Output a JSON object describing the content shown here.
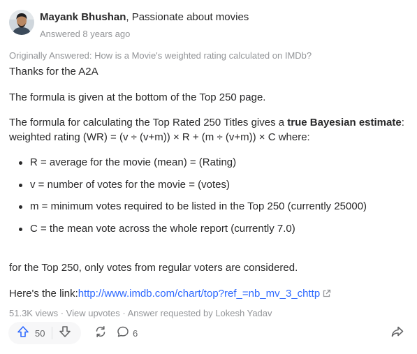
{
  "author": {
    "name": "Mayank Bhushan",
    "credential": ", Passionate about movies",
    "answered": "Answered 8 years ago"
  },
  "originally_answered": "Originally Answered: How is a Movie's weighted rating calculated on IMDb?",
  "body": {
    "p1": "Thanks for the A2A",
    "p2": "The formula is given at the bottom of the Top 250 page.",
    "p3_pre": "The formula for calculating the Top Rated 250 Titles gives a ",
    "p3_bold": "true Bayesian estimate",
    "p3_post": ":",
    "p4": "weighted rating (WR) = (v ÷ (v+m)) × R + (m ÷ (v+m)) × C where:",
    "bullets": [
      "R = average for the movie (mean) = (Rating)",
      "v = number of votes for the movie = (votes)",
      "m = minimum votes required to be listed in the Top 250 (currently 25000)",
      "C = the mean vote across the whole report (currently 7.0)"
    ],
    "p5": "for the Top 250, only votes from regular voters are considered.",
    "link_prefix": "Here's the link:",
    "link_text": "http://www.imdb.com/chart/top?ref_=nb_mv_3_chttp"
  },
  "stats": {
    "views": "51.3K views",
    "sep": " · ",
    "view_upvotes": "View upvotes",
    "requested": "Answer requested by Lokesh Yadav"
  },
  "actions": {
    "upvotes": "50",
    "comments": "6"
  },
  "colors": {
    "text": "#282829",
    "muted": "#939598",
    "link": "#2e69ff",
    "upvote": "#2e69ff"
  }
}
